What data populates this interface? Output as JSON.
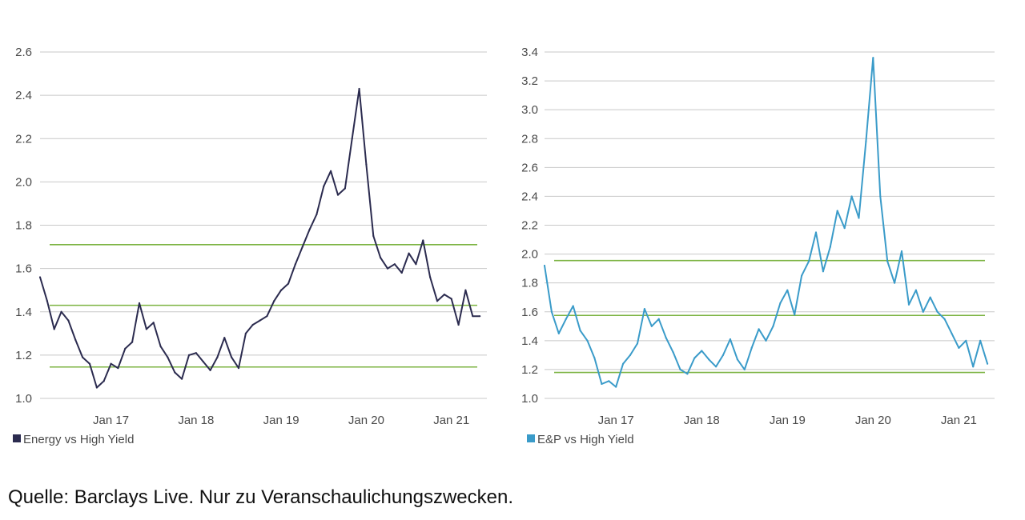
{
  "source_note": "Quelle: Barclays Live. Nur zu Veranschaulichungszwecken.",
  "chart_data": [
    {
      "type": "line",
      "title": "",
      "xlabel": "",
      "ylabel": "",
      "ylim": [
        1.0,
        2.6
      ],
      "yticks": [
        "1.0",
        "1.2",
        "1.4",
        "1.6",
        "1.8",
        "2.0",
        "2.2",
        "2.4",
        "2.6"
      ],
      "xlim": [
        "2016-03",
        "2021-06"
      ],
      "xticks": [
        {
          "label": "Jan 17",
          "x": "2017-01"
        },
        {
          "label": "Jan 18",
          "x": "2018-01"
        },
        {
          "label": "Jan 19",
          "x": "2019-01"
        },
        {
          "label": "Jan 20",
          "x": "2020-01"
        },
        {
          "label": "Jan 21",
          "x": "2021-01"
        }
      ],
      "grid": true,
      "legend_position": "bottom-left",
      "series": [
        {
          "name": "Energy vs High Yield",
          "color": "#2b2b4f",
          "x": [
            "2016-03",
            "2016-04",
            "2016-05",
            "2016-06",
            "2016-07",
            "2016-08",
            "2016-09",
            "2016-10",
            "2016-11",
            "2016-12",
            "2017-01",
            "2017-02",
            "2017-03",
            "2017-04",
            "2017-05",
            "2017-06",
            "2017-07",
            "2017-08",
            "2017-09",
            "2017-10",
            "2017-11",
            "2017-12",
            "2018-01",
            "2018-02",
            "2018-03",
            "2018-04",
            "2018-05",
            "2018-06",
            "2018-07",
            "2018-08",
            "2018-09",
            "2018-10",
            "2018-11",
            "2018-12",
            "2019-01",
            "2019-02",
            "2019-03",
            "2019-04",
            "2019-05",
            "2019-06",
            "2019-07",
            "2019-08",
            "2019-09",
            "2019-10",
            "2019-11",
            "2019-12",
            "2020-01",
            "2020-02",
            "2020-03",
            "2020-04",
            "2020-05",
            "2020-06",
            "2020-07",
            "2020-08",
            "2020-09",
            "2020-10",
            "2020-11",
            "2020-12",
            "2021-01",
            "2021-02",
            "2021-03",
            "2021-04",
            "2021-05"
          ],
          "values": [
            1.56,
            1.45,
            1.32,
            1.4,
            1.36,
            1.27,
            1.19,
            1.16,
            1.05,
            1.08,
            1.16,
            1.14,
            1.23,
            1.26,
            1.44,
            1.32,
            1.35,
            1.24,
            1.19,
            1.12,
            1.09,
            1.2,
            1.21,
            1.17,
            1.13,
            1.19,
            1.28,
            1.19,
            1.14,
            1.3,
            1.34,
            1.36,
            1.38,
            1.45,
            1.5,
            1.53,
            1.62,
            1.7,
            1.78,
            1.85,
            1.98,
            2.05,
            1.94,
            1.97,
            2.2,
            2.43,
            2.08,
            1.75,
            1.65,
            1.6,
            1.62,
            1.58,
            1.67,
            1.62,
            1.73,
            1.56,
            1.45,
            1.48,
            1.46,
            1.34,
            1.5,
            1.38,
            1.38
          ]
        }
      ],
      "reference_lines": {
        "color": "#7cb342",
        "values": [
          1.71,
          1.43,
          1.145
        ]
      }
    },
    {
      "type": "line",
      "title": "",
      "xlabel": "",
      "ylabel": "",
      "ylim": [
        1.0,
        3.4
      ],
      "yticks": [
        "1.0",
        "1.2",
        "1.4",
        "1.6",
        "1.8",
        "2.0",
        "2.2",
        "2.4",
        "2.6",
        "2.8",
        "3.0",
        "3.2",
        "3.4"
      ],
      "xlim": [
        "2016-03",
        "2021-06"
      ],
      "xticks": [
        {
          "label": "Jan 17",
          "x": "2017-01"
        },
        {
          "label": "Jan 18",
          "x": "2018-01"
        },
        {
          "label": "Jan 19",
          "x": "2019-01"
        },
        {
          "label": "Jan 20",
          "x": "2020-01"
        },
        {
          "label": "Jan 21",
          "x": "2021-01"
        }
      ],
      "grid": true,
      "legend_position": "bottom-left",
      "series": [
        {
          "name": "E&P vs High Yield",
          "color": "#3a9bc9",
          "x": [
            "2016-03",
            "2016-04",
            "2016-05",
            "2016-06",
            "2016-07",
            "2016-08",
            "2016-09",
            "2016-10",
            "2016-11",
            "2016-12",
            "2017-01",
            "2017-02",
            "2017-03",
            "2017-04",
            "2017-05",
            "2017-06",
            "2017-07",
            "2017-08",
            "2017-09",
            "2017-10",
            "2017-11",
            "2017-12",
            "2018-01",
            "2018-02",
            "2018-03",
            "2018-04",
            "2018-05",
            "2018-06",
            "2018-07",
            "2018-08",
            "2018-09",
            "2018-10",
            "2018-11",
            "2018-12",
            "2019-01",
            "2019-02",
            "2019-03",
            "2019-04",
            "2019-05",
            "2019-06",
            "2019-07",
            "2019-08",
            "2019-09",
            "2019-10",
            "2019-11",
            "2019-12",
            "2020-01",
            "2020-02",
            "2020-03",
            "2020-04",
            "2020-05",
            "2020-06",
            "2020-07",
            "2020-08",
            "2020-09",
            "2020-10",
            "2020-11",
            "2020-12",
            "2021-01",
            "2021-02",
            "2021-03",
            "2021-04",
            "2021-05"
          ],
          "values": [
            1.92,
            1.6,
            1.45,
            1.55,
            1.64,
            1.47,
            1.4,
            1.28,
            1.1,
            1.12,
            1.08,
            1.24,
            1.3,
            1.38,
            1.62,
            1.5,
            1.55,
            1.42,
            1.32,
            1.2,
            1.17,
            1.28,
            1.33,
            1.27,
            1.22,
            1.3,
            1.41,
            1.27,
            1.2,
            1.35,
            1.48,
            1.4,
            1.5,
            1.66,
            1.75,
            1.58,
            1.85,
            1.95,
            2.15,
            1.88,
            2.05,
            2.3,
            2.18,
            2.4,
            2.25,
            2.78,
            3.36,
            2.4,
            1.95,
            1.8,
            2.02,
            1.65,
            1.75,
            1.6,
            1.7,
            1.6,
            1.55,
            1.45,
            1.35,
            1.4,
            1.22,
            1.4,
            1.24
          ]
        }
      ],
      "reference_lines": {
        "color": "#7cb342",
        "values": [
          1.955,
          1.575,
          1.18
        ]
      }
    }
  ]
}
